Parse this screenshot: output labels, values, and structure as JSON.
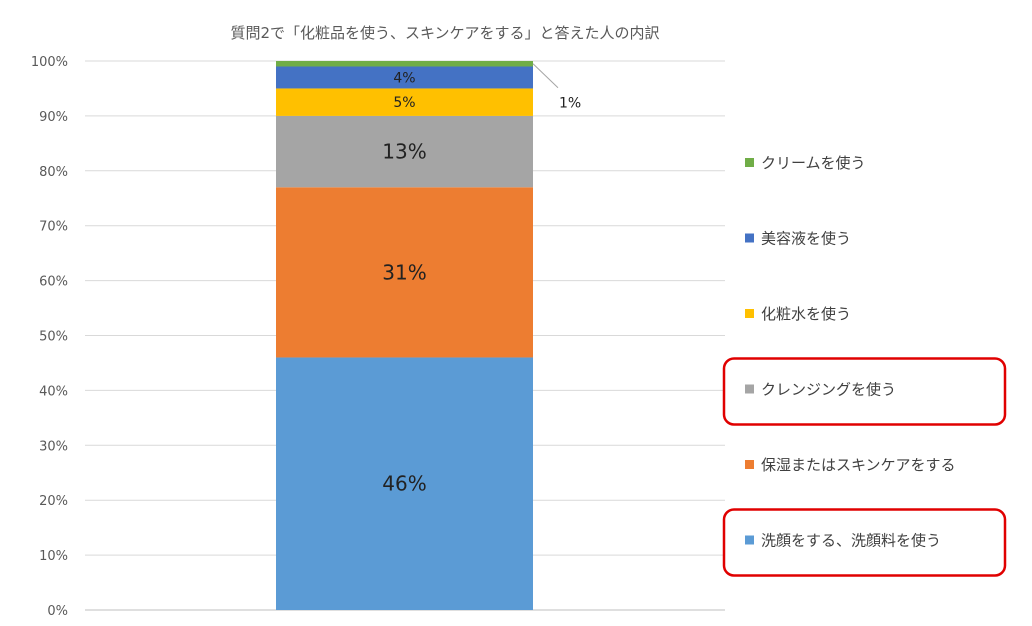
{
  "chart_data": {
    "type": "bar",
    "stacked": true,
    "title": "質問2で「化粧品を使う、スキンケアをする」と答えた人の内訳",
    "ylim": [
      0,
      100
    ],
    "yticks": [
      "0%",
      "10%",
      "20%",
      "30%",
      "40%",
      "50%",
      "60%",
      "70%",
      "80%",
      "90%",
      "100%"
    ],
    "grid": true,
    "legend_position": "right",
    "series": [
      {
        "name": "洗顔をする、洗顔料を使う",
        "value": 46,
        "label": "46%",
        "color": "#5B9BD5"
      },
      {
        "name": "保湿またはスキンケアをする",
        "value": 31,
        "label": "31%",
        "color": "#ED7D31"
      },
      {
        "name": "クレンジングを使う",
        "value": 13,
        "label": "13%",
        "color": "#A5A5A5"
      },
      {
        "name": "化粧水を使う",
        "value": 5,
        "label": "5%",
        "color": "#FFC000"
      },
      {
        "name": "美容液を使う",
        "value": 4,
        "label": "4%",
        "color": "#4472C4"
      },
      {
        "name": "クリームを使う",
        "value": 1,
        "label": "1%",
        "color": "#70AD47"
      }
    ],
    "highlighted_legend_items": [
      "クレンジングを使う",
      "洗顔をする、洗顔料を使う"
    ],
    "highlight_color": "#E00000"
  }
}
